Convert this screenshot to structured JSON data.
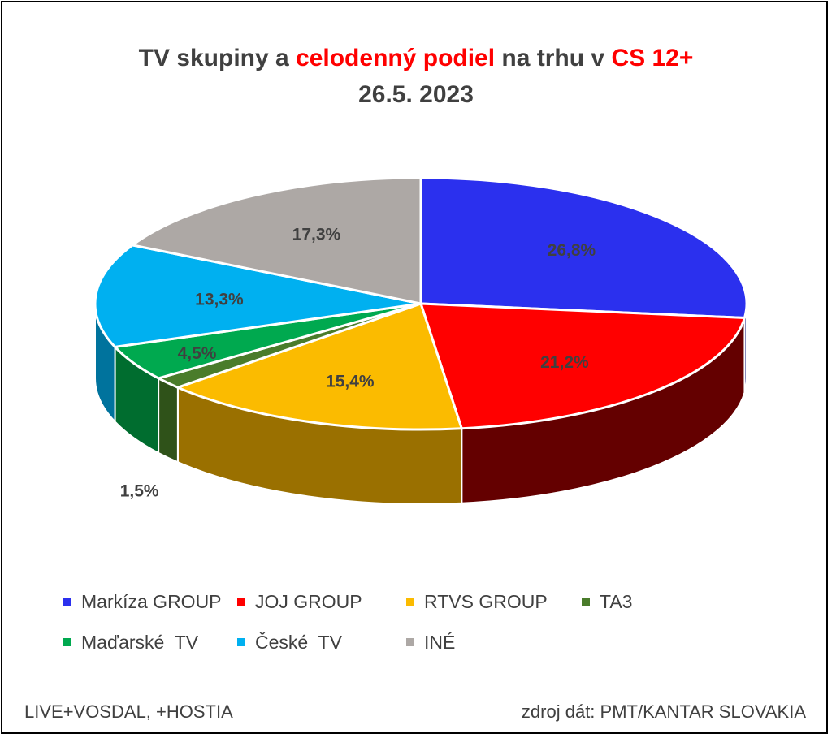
{
  "chart_data": {
    "type": "pie",
    "title_parts": [
      {
        "text": "TV skupiny a ",
        "highlight": false
      },
      {
        "text": "celodenný podiel",
        "highlight": true
      },
      {
        "text": " na trhu v ",
        "highlight": false
      },
      {
        "text": "CS 12+",
        "highlight": true
      }
    ],
    "subtitle": "26.5. 2023",
    "slices": [
      {
        "label": "Markíza GROUP",
        "value": 26.8,
        "value_label": "26,8%",
        "color": "#2b30ee",
        "side_color": "#141a7a"
      },
      {
        "label": "JOJ GROUP",
        "value": 21.2,
        "value_label": "21,2%",
        "color": "#ff0000",
        "side_color": "#640000"
      },
      {
        "label": "RTVS GROUP",
        "value": 15.4,
        "value_label": "15,4%",
        "color": "#fbbb00",
        "side_color": "#9a7000"
      },
      {
        "label": "TA3",
        "value": 1.5,
        "value_label": "1,5%",
        "color": "#4a7c2b",
        "side_color": "#2f5219"
      },
      {
        "label": "Maďarské  TV",
        "value": 4.5,
        "value_label": "4,5%",
        "color": "#00a94f",
        "side_color": "#006d2f"
      },
      {
        "label": "České  TV",
        "value": 13.3,
        "value_label": "13,3%",
        "color": "#00b0f0",
        "side_color": "#00739d"
      },
      {
        "label": "INÉ",
        "value": 17.3,
        "value_label": "17,3%",
        "color": "#ada8a5",
        "side_color": "#6e6a68"
      }
    ],
    "legend_position": "bottom",
    "highlight_color": "#ff0000",
    "text_color": "#404040"
  },
  "footer": {
    "left": "LIVE+VOSDAL, +HOSTIA",
    "right": "zdroj dát: PMT/KANTAR SLOVAKIA"
  }
}
